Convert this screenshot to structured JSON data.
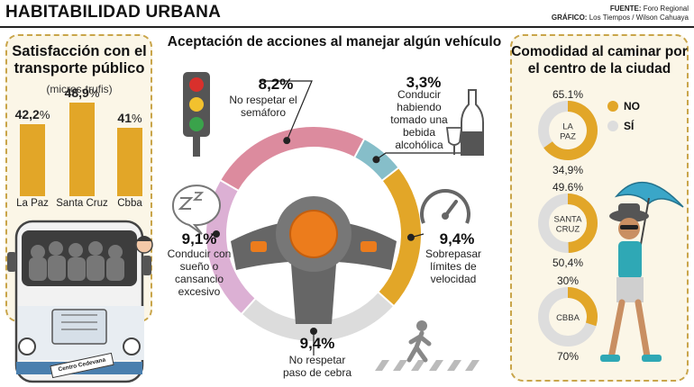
{
  "header": {
    "title": "HABITABILIDAD URBANA",
    "source_label": "FUENTE:",
    "source_value": "Foro Regional",
    "graphic_label": "GRÁFICO:",
    "graphic_value": "Los Tiempos / Wilson Cahuaya"
  },
  "colors": {
    "gold": "#e2a628",
    "pink": "#dc8b9e",
    "teal": "#86bec9",
    "lavender": "#dcb0d4",
    "light_gray": "#dcdcdc",
    "wheel_dark": "#666666",
    "orange": "#ec7c1c",
    "donut_gray": "#dddddd"
  },
  "chart_data": [
    {
      "type": "bar",
      "title": "Satisfacción con el transporte público",
      "subtitle": "(micros-trufis)",
      "categories": [
        "La Paz",
        "Santa Cruz",
        "Cbba"
      ],
      "values": [
        42.2,
        48.9,
        41
      ],
      "value_labels": [
        "42,2",
        "48,9",
        "41"
      ],
      "unit": "%"
    },
    {
      "type": "pie",
      "title": "Aceptación de acciones al manejar algún vehículo",
      "segments": [
        {
          "pct": "8,2%",
          "value": 8.2,
          "label": "No respetar el semáforo",
          "color": "#dc8b9e"
        },
        {
          "pct": "3,3%",
          "value": 3.3,
          "label": "Conducir habiendo tomado una bebida alcohólica",
          "color": "#86bec9"
        },
        {
          "pct": "9,4%",
          "value": 9.4,
          "label": "Sobrepasar límites de velocidad",
          "color": "#e2a628"
        },
        {
          "pct": "9,4%",
          "value": 9.4,
          "label": "No respetar paso de cebra",
          "color": "#dcdcdc"
        },
        {
          "pct": "9,1%",
          "value": 9.1,
          "label": "Conducir con sueño o cansancio excesivo",
          "color": "#dcb0d4"
        }
      ]
    },
    {
      "type": "pie",
      "title": "Comodidad al caminar por el centro de la ciudad",
      "legend": [
        {
          "label": "NO",
          "color": "#e2a628"
        },
        {
          "label": "SÍ",
          "color": "#dddddd"
        }
      ],
      "cities": [
        {
          "name": "LA PAZ",
          "no": 65.1,
          "si": 34.9,
          "no_label": "65.1%",
          "si_label": "34,9%"
        },
        {
          "name": "SANTA CRUZ",
          "no": 49.6,
          "si": 50.4,
          "no_label": "49.6%",
          "si_label": "50,4%"
        },
        {
          "name": "CBBA",
          "no": 30,
          "si": 70,
          "no_label": "30%",
          "si_label": "70%"
        }
      ]
    }
  ],
  "bus_sign": "Centro Cedevana"
}
